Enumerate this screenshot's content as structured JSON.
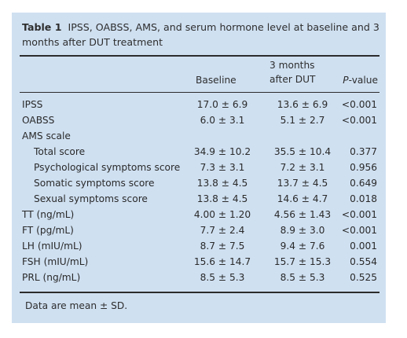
{
  "table": {
    "label": "Table 1",
    "title": "IPSS, OABSS, AMS, and serum hormone level at baseline and 3 months after DUT treatment",
    "headers": {
      "baseline": "Baseline",
      "after_line1": "3 months",
      "after_line2": "after DUT",
      "pvalue_letter": "P",
      "pvalue_rest": "-value"
    },
    "rows": [
      {
        "label": "IPSS",
        "indent": false,
        "baseline": "17.0 ± 6.9",
        "after": "13.6 ± 6.9",
        "p": "<0.001"
      },
      {
        "label": "OABSS",
        "indent": false,
        "baseline": "6.0 ± 3.1",
        "after": "5.1 ± 2.7",
        "p": "<0.001"
      },
      {
        "label": "AMS scale",
        "indent": false,
        "baseline": "",
        "after": "",
        "p": ""
      },
      {
        "label": "Total score",
        "indent": true,
        "baseline": "34.9 ± 10.2",
        "after": "35.5 ± 10.4",
        "p": "0.377"
      },
      {
        "label": "Psychological symptoms score",
        "indent": true,
        "baseline": "7.3 ± 3.1",
        "after": "7.2 ± 3.1",
        "p": "0.956"
      },
      {
        "label": "Somatic symptoms score",
        "indent": true,
        "baseline": "13.8 ± 4.5",
        "after": "13.7 ± 4.5",
        "p": "0.649"
      },
      {
        "label": "Sexual symptoms score",
        "indent": true,
        "baseline": "13.8 ± 4.5",
        "after": "14.6 ± 4.7",
        "p": "0.018"
      },
      {
        "label": "TT (ng/mL)",
        "indent": false,
        "baseline": "4.00 ± 1.20",
        "after": "4.56 ± 1.43",
        "p": "<0.001"
      },
      {
        "label": "FT (pg/mL)",
        "indent": false,
        "baseline": "7.7 ± 2.4",
        "after": "8.9 ± 3.0",
        "p": "<0.001"
      },
      {
        "label": "LH (mIU/mL)",
        "indent": false,
        "baseline": "8.7 ± 7.5",
        "after": "9.4 ± 7.6",
        "p": "0.001"
      },
      {
        "label": "FSH (mIU/mL)",
        "indent": false,
        "baseline": "15.6 ± 14.7",
        "after": "15.7 ± 15.3",
        "p": "0.554"
      },
      {
        "label": "PRL (ng/mL)",
        "indent": false,
        "baseline": "8.5 ± 5.3",
        "after": "8.5 ± 5.3",
        "p": "0.525"
      }
    ],
    "footnote": "Data are mean ± SD."
  }
}
